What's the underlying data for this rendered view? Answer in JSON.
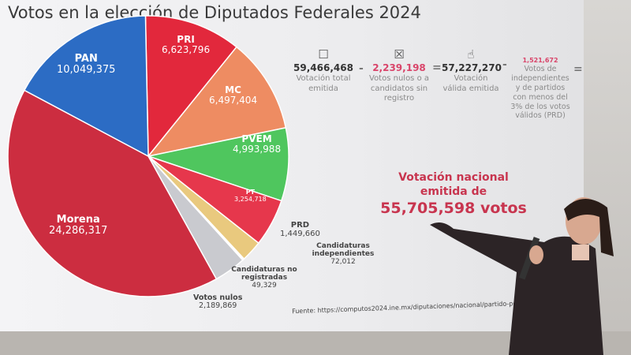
{
  "title": "Votos en la elección de Diputados Federales 2024",
  "chart_data": {
    "type": "pie",
    "title": "Votos en la elección de Diputados Federales 2024",
    "slices": [
      {
        "label": "PRI",
        "value": 6623796,
        "display": "6,623,796",
        "color": "#e2283c"
      },
      {
        "label": "MC",
        "value": 6497404,
        "display": "6,497,404",
        "color": "#ee8c62"
      },
      {
        "label": "PVEM",
        "value": 4993988,
        "display": "4,993,988",
        "color": "#4fc65e"
      },
      {
        "label": "PT",
        "value": 3254718,
        "display": "3,254,718",
        "color": "#e6374c"
      },
      {
        "label": "PRD",
        "value": 1449660,
        "display": "1,449,660",
        "color": "#e9c97e"
      },
      {
        "label": "Candidaturas independientes",
        "value": 72012,
        "display": "72,012",
        "color": "#9a9a9a"
      },
      {
        "label": "Candidaturas no registradas",
        "value": 49329,
        "display": "49,329",
        "color": "#7a7a7a"
      },
      {
        "label": "Votos nulos",
        "value": 2189869,
        "display": "2,189,869",
        "color": "#c9cacf"
      },
      {
        "label": "Morena",
        "value": 24286317,
        "display": "24,286,317",
        "color": "#cc2d40"
      },
      {
        "label": "PAN",
        "value": 10049375,
        "display": "10,049,375",
        "color": "#2c6cc4"
      }
    ]
  },
  "equation": {
    "total": {
      "value": "59,466,468",
      "label": "Votación total emitida",
      "icon": "ballot-box-icon"
    },
    "nulos": {
      "value": "2,239,198",
      "label": "Votos nulos o a candidatos sin registro",
      "icon": "clipboard-x-icon"
    },
    "valida": {
      "value": "57,227,270",
      "label": "Votación válida emitida",
      "icon": "thumbs-up-icon"
    },
    "menores": {
      "value": "1,521,672",
      "label": "Votos de independientes y de partidos con menos del 3% de los votos válidos (PRD)"
    },
    "minus": "-",
    "equals": "="
  },
  "nacional": {
    "line1": "Votación nacional",
    "line2": "emitida de",
    "total": "55,705,598 votos"
  },
  "source": "Fuente: https://computos2024.ine.mx/diputaciones/nacional/partido-politico-candidatura",
  "colors": {
    "accent": "#c8354f"
  }
}
